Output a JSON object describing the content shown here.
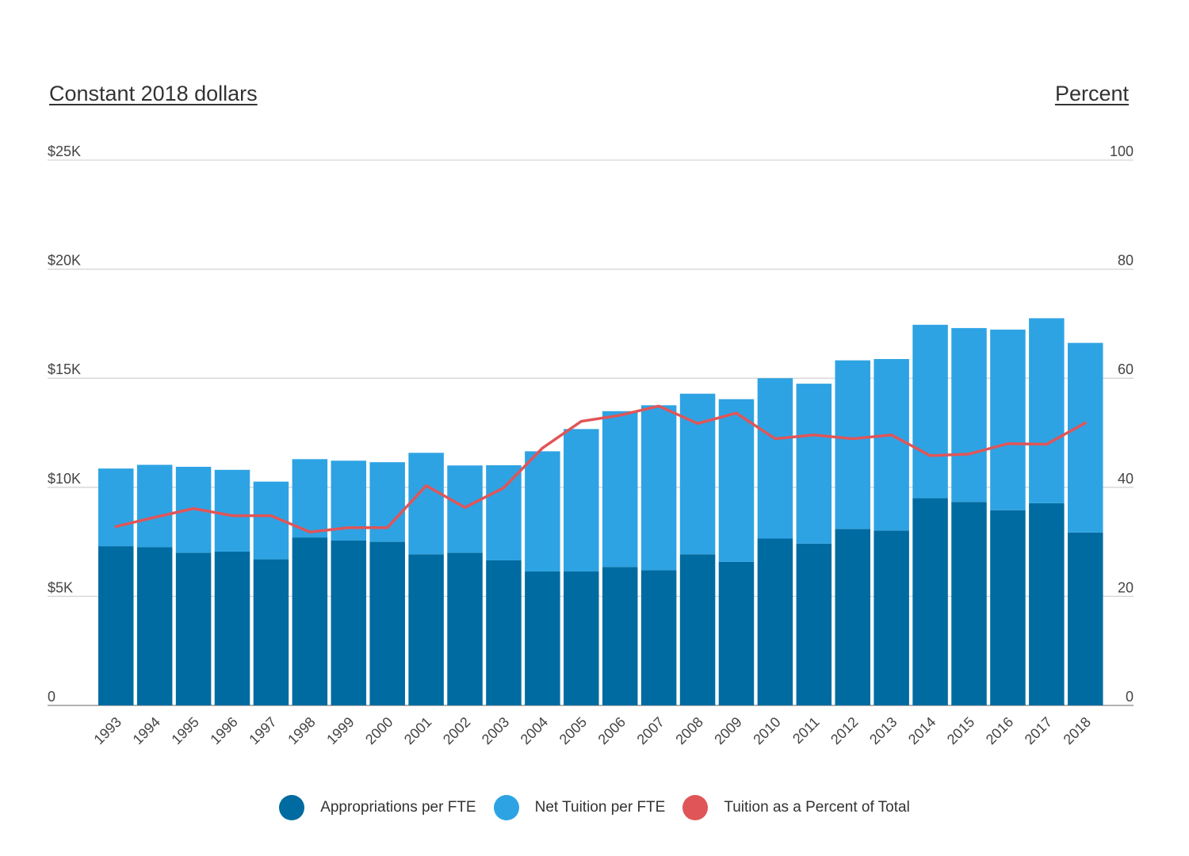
{
  "chart_data": {
    "type": "bar",
    "stacked": true,
    "y_axis_left": {
      "title": "Constant 2018 dollars",
      "ylim": [
        0,
        25000
      ],
      "ticks": [
        0,
        5000,
        10000,
        15000,
        20000,
        25000
      ],
      "tick_labels": [
        "0",
        "$5K",
        "$10K",
        "$15K",
        "$20K",
        "$25K"
      ]
    },
    "y_axis_right": {
      "title": "Percent",
      "ylim": [
        0,
        100
      ],
      "ticks": [
        0,
        20,
        40,
        60,
        80,
        100
      ],
      "tick_labels": [
        "0",
        "20",
        "40",
        "60",
        "80",
        "100"
      ]
    },
    "categories": [
      "1993",
      "1994",
      "1995",
      "1996",
      "1997",
      "1998",
      "1999",
      "2000",
      "2001",
      "2002",
      "2003",
      "2004",
      "2005",
      "2006",
      "2007",
      "2008",
      "2009",
      "2010",
      "2011",
      "2012",
      "2013",
      "2014",
      "2015",
      "2016",
      "2017",
      "2018"
    ],
    "series": [
      {
        "name": "Appropriations per FTE",
        "type": "bar",
        "axis": "left",
        "color": "#006ba0",
        "values": [
          7300,
          7250,
          7000,
          7050,
          6700,
          7700,
          7560,
          7500,
          6930,
          7000,
          6650,
          6140,
          6140,
          6350,
          6200,
          6930,
          6580,
          7650,
          7420,
          8090,
          8020,
          9500,
          9330,
          8950,
          9270,
          7930
        ]
      },
      {
        "name": "Net Tuition per FTE",
        "type": "bar",
        "axis": "left",
        "color": "#2ea3e3",
        "values": [
          3560,
          3780,
          3940,
          3750,
          3560,
          3590,
          3660,
          3650,
          4650,
          4000,
          4360,
          5510,
          6530,
          7140,
          7560,
          7360,
          7460,
          7350,
          7330,
          7730,
          7860,
          7950,
          7970,
          8280,
          8480,
          8690
        ]
      },
      {
        "name": "Tuition as a Percent of Total",
        "type": "line",
        "axis": "right",
        "color": "#e05558",
        "values": [
          32.8,
          34.5,
          36.1,
          34.8,
          34.8,
          31.8,
          32.6,
          32.6,
          40.3,
          36.3,
          39.9,
          47.2,
          52.1,
          53.2,
          54.9,
          51.7,
          53.6,
          48.9,
          49.6,
          48.9,
          49.6,
          45.8,
          46.1,
          48.0,
          47.9,
          51.8
        ]
      }
    ],
    "grid": true,
    "legend_position": "bottom-center"
  }
}
